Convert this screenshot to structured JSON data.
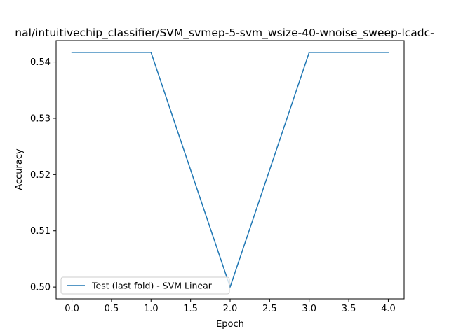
{
  "chart_data": {
    "type": "line",
    "title": "nal/intuitivechip_classifier/SVM_svmep-5-svm_wsize-40-wnoise_sweep-lcadc-",
    "xlabel": "Epoch",
    "ylabel": "Accuracy",
    "xlim": [
      -0.2,
      4.2
    ],
    "ylim": [
      0.4979,
      0.5438
    ],
    "xticks": [
      0.0,
      0.5,
      1.0,
      1.5,
      2.0,
      2.5,
      3.0,
      3.5,
      4.0
    ],
    "xtick_labels": [
      "0.0",
      "0.5",
      "1.0",
      "1.5",
      "2.0",
      "2.5",
      "3.0",
      "3.5",
      "4.0"
    ],
    "yticks": [
      0.5,
      0.51,
      0.52,
      0.53,
      0.54
    ],
    "ytick_labels": [
      "0.50",
      "0.51",
      "0.52",
      "0.53",
      "0.54"
    ],
    "grid": false,
    "legend_position": "lower-left",
    "series": [
      {
        "name": "Test (last fold) - SVM Linear",
        "color": "#1f77b4",
        "x": [
          0,
          1,
          2,
          3,
          4
        ],
        "y": [
          0.5417,
          0.5417,
          0.5,
          0.5417,
          0.5417
        ]
      }
    ]
  }
}
